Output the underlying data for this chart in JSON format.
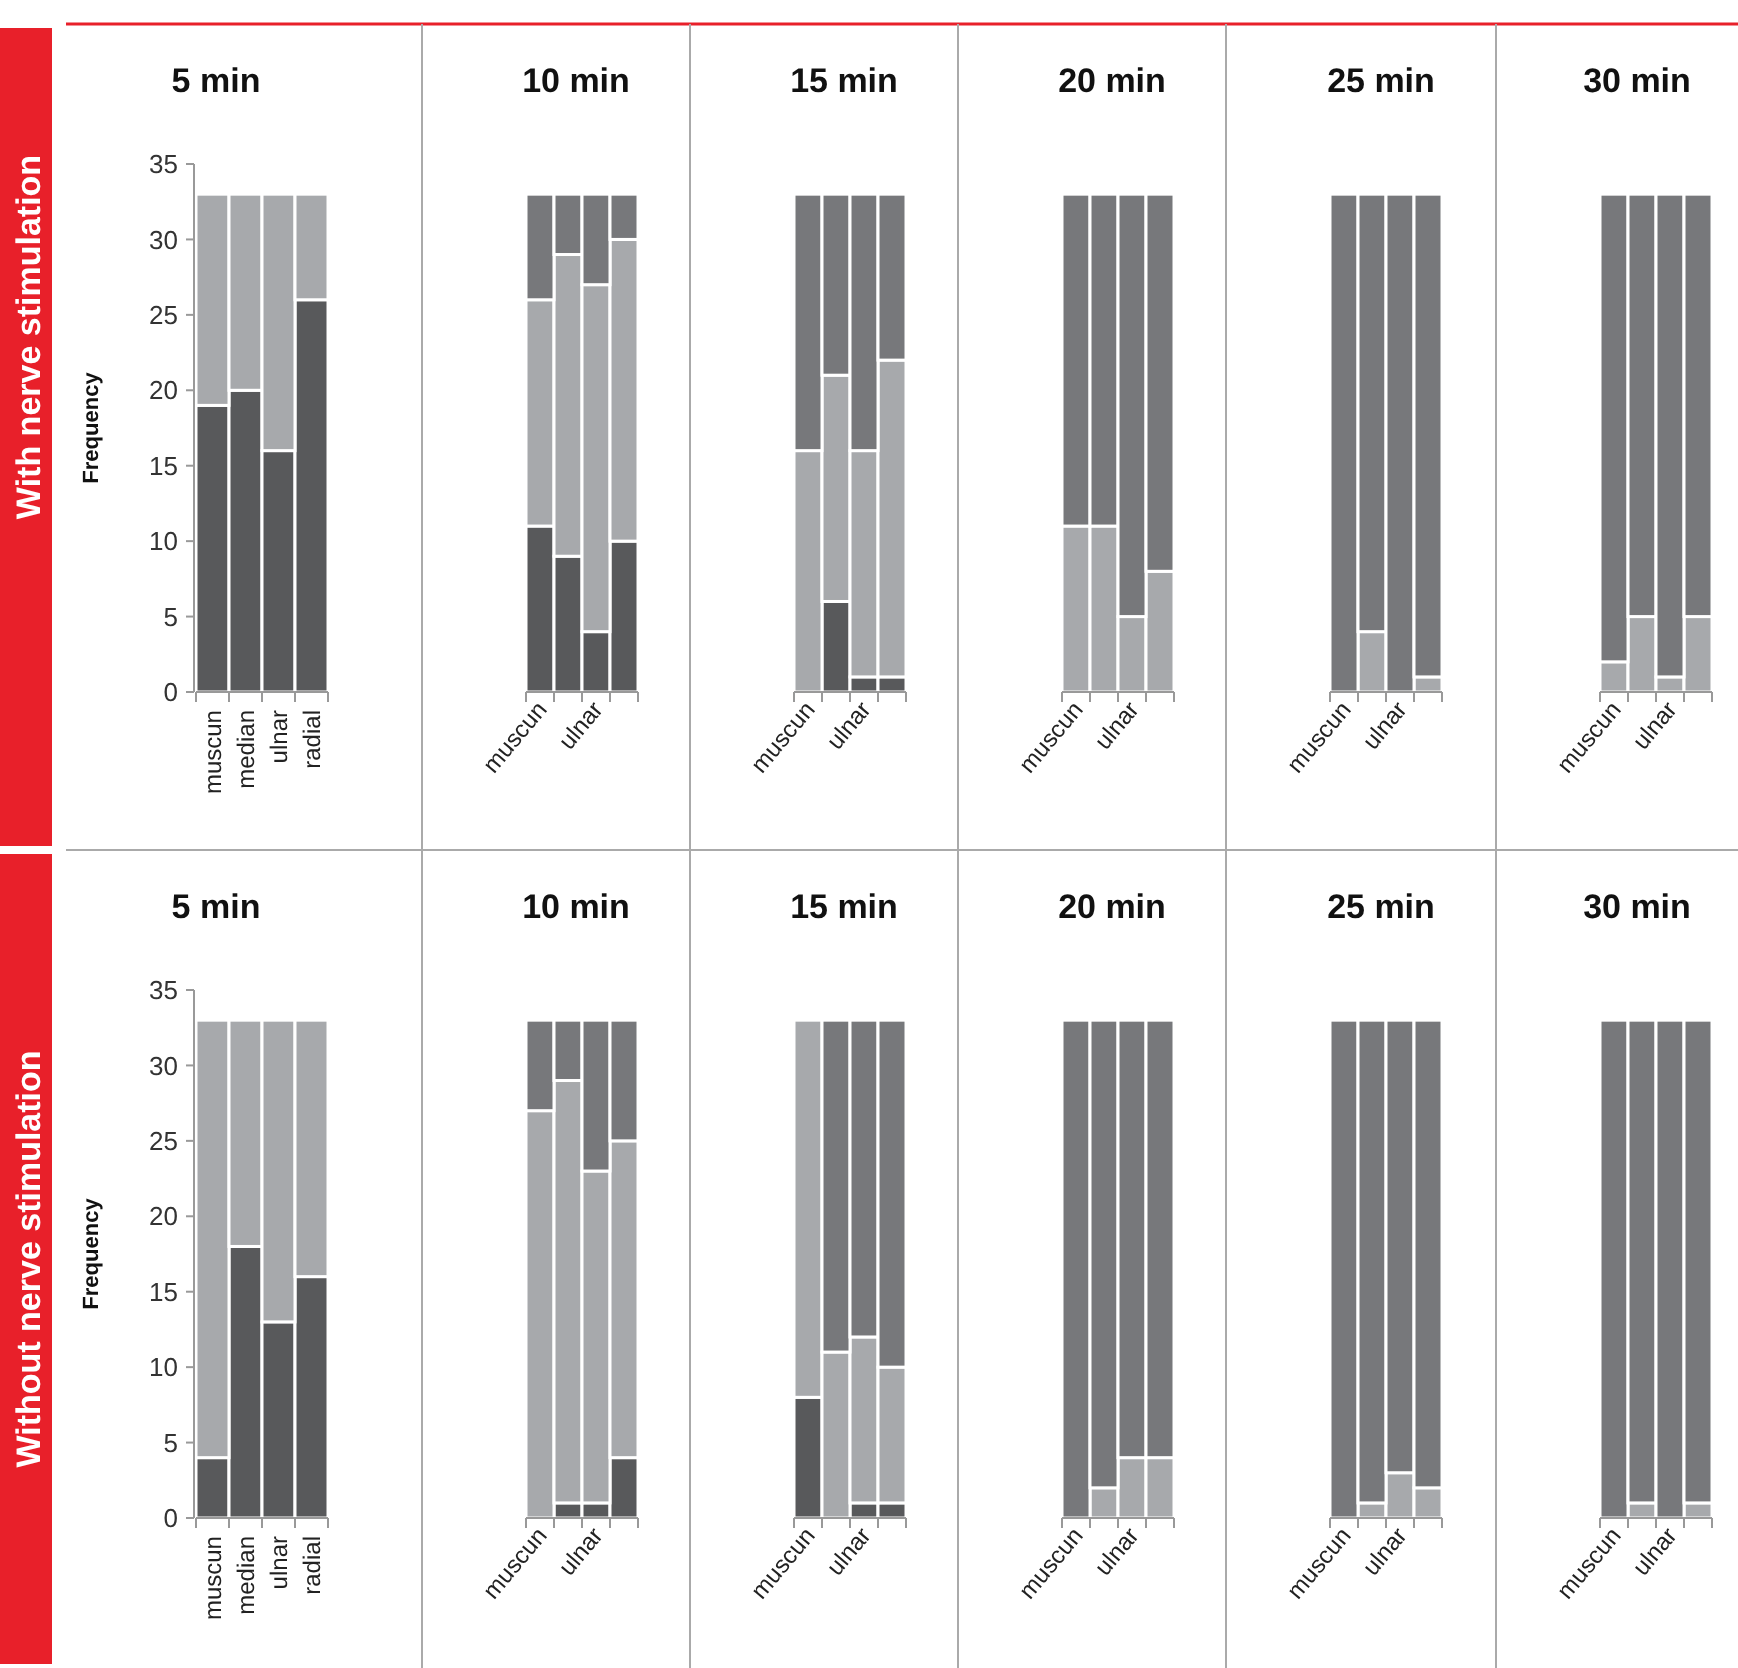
{
  "chart_data": [
    {
      "type": "bar",
      "stacked": true,
      "title": "5 min",
      "ylabel": "Frequency",
      "annotations": [
        "With nerve stimulation"
      ],
      "categories": [
        "muscun",
        "median",
        "ulnar",
        "radial"
      ],
      "ylim": [
        0,
        35
      ],
      "yticks": [
        0,
        5,
        10,
        15,
        20,
        25,
        30,
        35
      ],
      "series": [
        {
          "color": "#58595b",
          "values": [
            19,
            20,
            16,
            26
          ]
        },
        {
          "color": "#a7a9ac",
          "values": [
            14,
            13,
            17,
            7
          ]
        },
        {
          "color": "#77787b",
          "values": [
            0,
            0,
            0,
            0
          ]
        }
      ]
    },
    {
      "type": "bar",
      "stacked": true,
      "title": "10 min",
      "categories": [
        "muscun",
        null,
        "ulnar",
        null
      ],
      "ylim": [
        0,
        35
      ],
      "tick_labels": "x",
      "series": [
        {
          "color": "#58595b",
          "values": [
            11,
            9,
            4,
            10
          ]
        },
        {
          "color": "#a7a9ac",
          "values": [
            15,
            20,
            23,
            20
          ]
        },
        {
          "color": "#77787b",
          "values": [
            7,
            4,
            6,
            3
          ]
        }
      ]
    },
    {
      "type": "bar",
      "stacked": true,
      "title": "15 min",
      "categories": [
        "muscun",
        null,
        "ulnar",
        null
      ],
      "ylim": [
        0,
        35
      ],
      "tick_labels": "x",
      "series": [
        {
          "color": "#58595b",
          "values": [
            0,
            6,
            1,
            1
          ]
        },
        {
          "color": "#a7a9ac",
          "values": [
            16,
            15,
            15,
            21
          ]
        },
        {
          "color": "#77787b",
          "values": [
            17,
            12,
            17,
            11
          ]
        }
      ]
    },
    {
      "type": "bar",
      "stacked": true,
      "title": "20 min",
      "categories": [
        "muscun",
        null,
        "ulnar",
        null
      ],
      "ylim": [
        0,
        35
      ],
      "tick_labels": "x",
      "series": [
        {
          "color": "#58595b",
          "values": [
            0,
            0,
            0,
            0
          ]
        },
        {
          "color": "#a7a9ac",
          "values": [
            11,
            11,
            5,
            8
          ]
        },
        {
          "color": "#77787b",
          "values": [
            22,
            22,
            28,
            25
          ]
        }
      ]
    },
    {
      "type": "bar",
      "stacked": true,
      "title": "25 min",
      "categories": [
        "muscun",
        null,
        "ulnar",
        null
      ],
      "ylim": [
        0,
        35
      ],
      "tick_labels": "x",
      "series": [
        {
          "color": "#58595b",
          "values": [
            0,
            0,
            0,
            0
          ]
        },
        {
          "color": "#a7a9ac",
          "values": [
            0,
            4,
            0,
            1
          ]
        },
        {
          "color": "#77787b",
          "values": [
            33,
            29,
            33,
            32
          ]
        }
      ]
    },
    {
      "type": "bar",
      "stacked": true,
      "title": "30 min",
      "categories": [
        "muscun",
        null,
        "ulnar",
        null
      ],
      "ylim": [
        0,
        35
      ],
      "tick_labels": "x",
      "series": [
        {
          "color": "#58595b",
          "values": [
            0,
            0,
            0,
            0
          ]
        },
        {
          "color": "#a7a9ac",
          "values": [
            2,
            5,
            1,
            5
          ]
        },
        {
          "color": "#77787b",
          "values": [
            31,
            28,
            32,
            28
          ]
        }
      ]
    },
    {
      "type": "bar",
      "stacked": true,
      "title": "5 min",
      "ylabel": "Frequency",
      "annotations": [
        "Without nerve stimulation"
      ],
      "categories": [
        "muscun",
        "median",
        "ulnar",
        "radial"
      ],
      "ylim": [
        0,
        35
      ],
      "yticks": [
        0,
        5,
        10,
        15,
        20,
        25,
        30,
        35
      ],
      "series": [
        {
          "color": "#58595b",
          "values": [
            4,
            18,
            13,
            16
          ]
        },
        {
          "color": "#a7a9ac",
          "values": [
            29,
            15,
            20,
            17
          ]
        },
        {
          "color": "#77787b",
          "values": [
            0,
            0,
            0,
            0
          ]
        }
      ]
    },
    {
      "type": "bar",
      "stacked": true,
      "title": "10 min",
      "categories": [
        "muscun",
        null,
        "ulnar",
        null
      ],
      "ylim": [
        0,
        35
      ],
      "tick_labels": "x",
      "series": [
        {
          "color": "#58595b",
          "values": [
            0,
            1,
            1,
            4
          ]
        },
        {
          "color": "#a7a9ac",
          "values": [
            27,
            28,
            22,
            21
          ]
        },
        {
          "color": "#77787b",
          "values": [
            6,
            4,
            10,
            8
          ]
        }
      ]
    },
    {
      "type": "bar",
      "stacked": true,
      "title": "15 min",
      "categories": [
        "muscun",
        null,
        "ulnar",
        null
      ],
      "ylim": [
        0,
        35
      ],
      "tick_labels": "x",
      "series": [
        {
          "color": "#58595b",
          "values": [
            8,
            0,
            1,
            1
          ]
        },
        {
          "color": "#a7a9ac",
          "values": [
            25,
            11,
            11,
            9
          ]
        },
        {
          "color": "#77787b",
          "values": [
            0,
            22,
            21,
            23
          ]
        }
      ]
    },
    {
      "type": "bar",
      "stacked": true,
      "title": "20 min",
      "categories": [
        "muscun",
        null,
        "ulnar",
        null
      ],
      "ylim": [
        0,
        35
      ],
      "tick_labels": "x",
      "series": [
        {
          "color": "#58595b",
          "values": [
            0,
            0,
            0,
            0
          ]
        },
        {
          "color": "#a7a9ac",
          "values": [
            0,
            2,
            4,
            4
          ]
        },
        {
          "color": "#77787b",
          "values": [
            33,
            31,
            29,
            29
          ]
        }
      ]
    },
    {
      "type": "bar",
      "stacked": true,
      "title": "25 min",
      "categories": [
        "muscun",
        null,
        "ulnar",
        null
      ],
      "ylim": [
        0,
        35
      ],
      "tick_labels": "x",
      "series": [
        {
          "color": "#58595b",
          "values": [
            0,
            0,
            0,
            0
          ]
        },
        {
          "color": "#a7a9ac",
          "values": [
            0,
            1,
            3,
            2
          ]
        },
        {
          "color": "#77787b",
          "values": [
            33,
            32,
            30,
            31
          ]
        }
      ]
    },
    {
      "type": "bar",
      "stacked": true,
      "title": "30 min",
      "categories": [
        "muscun",
        null,
        "ulnar",
        null
      ],
      "ylim": [
        0,
        35
      ],
      "tick_labels": "x",
      "series": [
        {
          "color": "#58595b",
          "values": [
            0,
            0,
            0,
            0
          ]
        },
        {
          "color": "#a7a9ac",
          "values": [
            0,
            1,
            0,
            1
          ]
        },
        {
          "color": "#77787b",
          "values": [
            33,
            32,
            33,
            32
          ]
        }
      ]
    }
  ]
}
